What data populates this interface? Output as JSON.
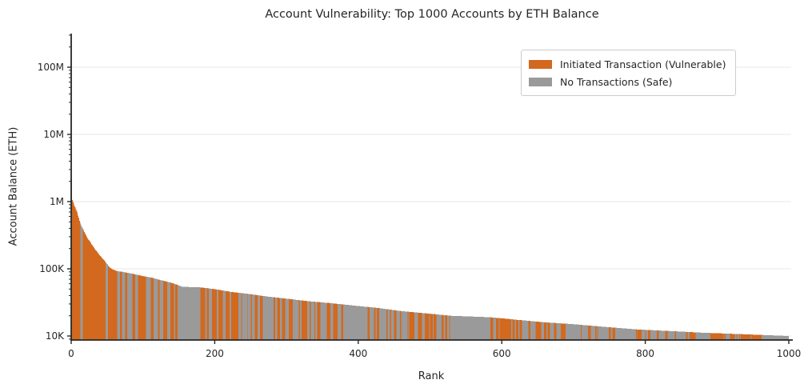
{
  "chart_data": {
    "type": "bar",
    "title": "Account Vulnerability: Top 1000 Accounts by ETH Balance",
    "xlabel": "Rank",
    "ylabel": "Account Balance (ETH)",
    "n_bars": 1000,
    "x_axis": {
      "min": 0,
      "max": 1005,
      "ticks": [
        0,
        200,
        400,
        600,
        800,
        1000
      ]
    },
    "y_axis": {
      "scale": "log",
      "min": 8700,
      "max": 316000000,
      "ticks": [
        {
          "value": 10000,
          "label": "10K"
        },
        {
          "value": 100000,
          "label": "100K"
        },
        {
          "value": 1000000,
          "label": "1M"
        },
        {
          "value": 10000000,
          "label": "10M"
        },
        {
          "value": 100000000,
          "label": "100M"
        }
      ]
    },
    "grid": {
      "horizontal_major": true
    },
    "legend": {
      "position": "upper-right",
      "items": [
        {
          "key": "vulnerable",
          "label": "Initiated Transaction (Vulnerable)",
          "color": "#D2691E"
        },
        {
          "key": "safe",
          "label": "No Transactions (Safe)",
          "color": "#9A9A9A"
        }
      ]
    },
    "balance_envelope": [
      [
        1,
        2200000
      ],
      [
        2,
        1050000
      ],
      [
        4,
        930000
      ],
      [
        6,
        820000
      ],
      [
        9,
        680000
      ],
      [
        12,
        520000
      ],
      [
        15,
        430000
      ],
      [
        18,
        370000
      ],
      [
        22,
        300000
      ],
      [
        27,
        250000
      ],
      [
        33,
        200000
      ],
      [
        40,
        160000
      ],
      [
        46,
        135000
      ],
      [
        50,
        120000
      ],
      [
        54,
        105000
      ],
      [
        58,
        98000
      ],
      [
        64,
        93000
      ],
      [
        72,
        90000
      ],
      [
        85,
        85000
      ],
      [
        100,
        78000
      ],
      [
        112,
        74000
      ],
      [
        125,
        68000
      ],
      [
        140,
        62000
      ],
      [
        150,
        57000
      ],
      [
        155,
        54000
      ],
      [
        180,
        53000
      ],
      [
        200,
        50000
      ],
      [
        225,
        45000
      ],
      [
        250,
        42000
      ],
      [
        275,
        38500
      ],
      [
        300,
        36000
      ],
      [
        330,
        33000
      ],
      [
        360,
        31000
      ],
      [
        400,
        28000
      ],
      [
        430,
        26000
      ],
      [
        460,
        23500
      ],
      [
        500,
        21500
      ],
      [
        530,
        20000
      ],
      [
        585,
        19000
      ],
      [
        620,
        17500
      ],
      [
        660,
        16000
      ],
      [
        700,
        15000
      ],
      [
        740,
        13800
      ],
      [
        790,
        12500
      ],
      [
        840,
        11800
      ],
      [
        880,
        11200
      ],
      [
        930,
        10700
      ],
      [
        970,
        10300
      ],
      [
        1000,
        10000
      ]
    ],
    "color_segments": [
      {
        "from": 1,
        "to": 1,
        "orange_fraction": 0.0
      },
      {
        "from": 2,
        "to": 55,
        "orange_fraction": 0.85
      },
      {
        "from": 56,
        "to": 64,
        "orange_fraction": 1.0
      },
      {
        "from": 65,
        "to": 150,
        "orange_fraction": 0.45
      },
      {
        "from": 151,
        "to": 180,
        "orange_fraction": 0.0
      },
      {
        "from": 181,
        "to": 230,
        "orange_fraction": 0.55
      },
      {
        "from": 231,
        "to": 300,
        "orange_fraction": 0.5
      },
      {
        "from": 301,
        "to": 450,
        "orange_fraction": 0.45
      },
      {
        "from": 451,
        "to": 500,
        "orange_fraction": 0.55
      },
      {
        "from": 501,
        "to": 528,
        "orange_fraction": 0.4
      },
      {
        "from": 529,
        "to": 580,
        "orange_fraction": 0.0
      },
      {
        "from": 581,
        "to": 640,
        "orange_fraction": 0.55
      },
      {
        "from": 641,
        "to": 730,
        "orange_fraction": 0.45
      },
      {
        "from": 731,
        "to": 895,
        "orange_fraction": 0.4
      },
      {
        "from": 896,
        "to": 965,
        "orange_fraction": 0.8
      },
      {
        "from": 966,
        "to": 1000,
        "orange_fraction": 0.0
      }
    ],
    "colors": {
      "vulnerable": "#D2691E",
      "safe": "#9A9A9A",
      "axis": "#262626",
      "text": "#262626",
      "grid": "#ECECEC",
      "background": "#FFFFFF",
      "legend_border": "#CCCCCC"
    }
  }
}
